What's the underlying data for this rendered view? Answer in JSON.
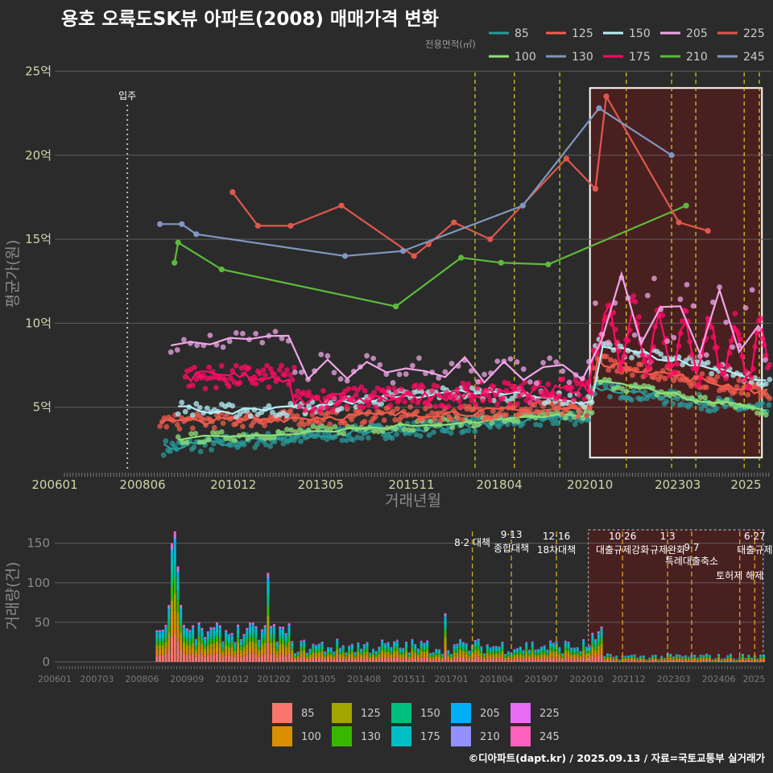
{
  "title": "용호 오륙도SK뷰 아파트(2008) 매매가격 변화",
  "credit": "©디아파트(dapt.kr) / 2025.09.13 / 자료=국토교통부 실거래가",
  "chart_data": [
    {
      "type": "line",
      "xlabel": "거래년월",
      "ylabel": "평균가(원)",
      "xlim": [
        "2006-01",
        "2025-09"
      ],
      "ylim": [
        1.2,
        25.5
      ],
      "y_unit": "억",
      "x_ticks": [
        "200601",
        "200806",
        "201012",
        "201305",
        "201511",
        "201804",
        "202010",
        "202303",
        "2025"
      ],
      "y_ticks": [
        "5억",
        "10억",
        "15억",
        "20억",
        "25억"
      ],
      "legend_title": "전용면적(㎡)",
      "annotation": {
        "date": "2008-01",
        "label": "입주"
      },
      "policy_lines": [
        "2017-08",
        "2018-09",
        "2019-12",
        "2021-10",
        "2023-01",
        "2023-09",
        "2025-01",
        "2025-06"
      ],
      "highlight_box": {
        "from": "2020-10",
        "to": "2025-09",
        "y_from": 2,
        "y_to": 24
      }
    },
    {
      "type": "bar",
      "ylabel": "거래량(건)",
      "ylim": [
        0,
        170
      ],
      "y_ticks": [
        "0",
        "50",
        "100",
        "150"
      ],
      "x_ticks": [
        "200601",
        "200703",
        "200806",
        "200909",
        "201012",
        "201202",
        "201305",
        "201408",
        "201511",
        "201701",
        "201804",
        "201907",
        "202010",
        "202112",
        "202303",
        "202406",
        "2025"
      ],
      "policies": [
        {
          "date": "2017-08",
          "label": "8·2 대책",
          "sub": ""
        },
        {
          "date": "2018-09",
          "label": "9·13",
          "sub": "종합대책"
        },
        {
          "date": "2019-12",
          "label": "12·16",
          "sub": "18차대책"
        },
        {
          "date": "2021-10",
          "label": "10·26",
          "sub": "대출규제강화"
        },
        {
          "date": "2023-01",
          "label": "1·3",
          "sub": "규제완화"
        },
        {
          "date": "2023-09",
          "label": "9·7",
          "sub": "특례대출축소"
        },
        {
          "date": "2025-01",
          "label": "",
          "sub": "토허제 해제"
        },
        {
          "date": "2025-06",
          "label": "6·27",
          "sub": "대출규제"
        }
      ],
      "series_colors": {
        "85": "#f8766d",
        "100": "#d89000",
        "125": "#a3a500",
        "130": "#39b600",
        "150": "#00bf7d",
        "175": "#00bfc4",
        "205": "#00b0f6",
        "210": "#9590ff",
        "225": "#e76bf3",
        "245": "#ff62bc"
      },
      "legend": [
        "85",
        "100",
        "125",
        "130",
        "150",
        "175",
        "205",
        "210",
        "225",
        "245"
      ]
    }
  ],
  "legend_top": [
    {
      "name": "85",
      "color": "#2a9a9a"
    },
    {
      "name": "100",
      "color": "#8ee07a"
    },
    {
      "name": "125",
      "color": "#f25c4e"
    },
    {
      "name": "130",
      "color": "#7a97b8"
    },
    {
      "name": "150",
      "color": "#b8f0f8"
    },
    {
      "name": "175",
      "color": "#ff0c64"
    },
    {
      "name": "205",
      "color": "#f0a6e8"
    },
    {
      "name": "210",
      "color": "#5dbb3a"
    },
    {
      "name": "225",
      "color": "#e0574c"
    },
    {
      "name": "245",
      "color": "#8098c0"
    }
  ]
}
